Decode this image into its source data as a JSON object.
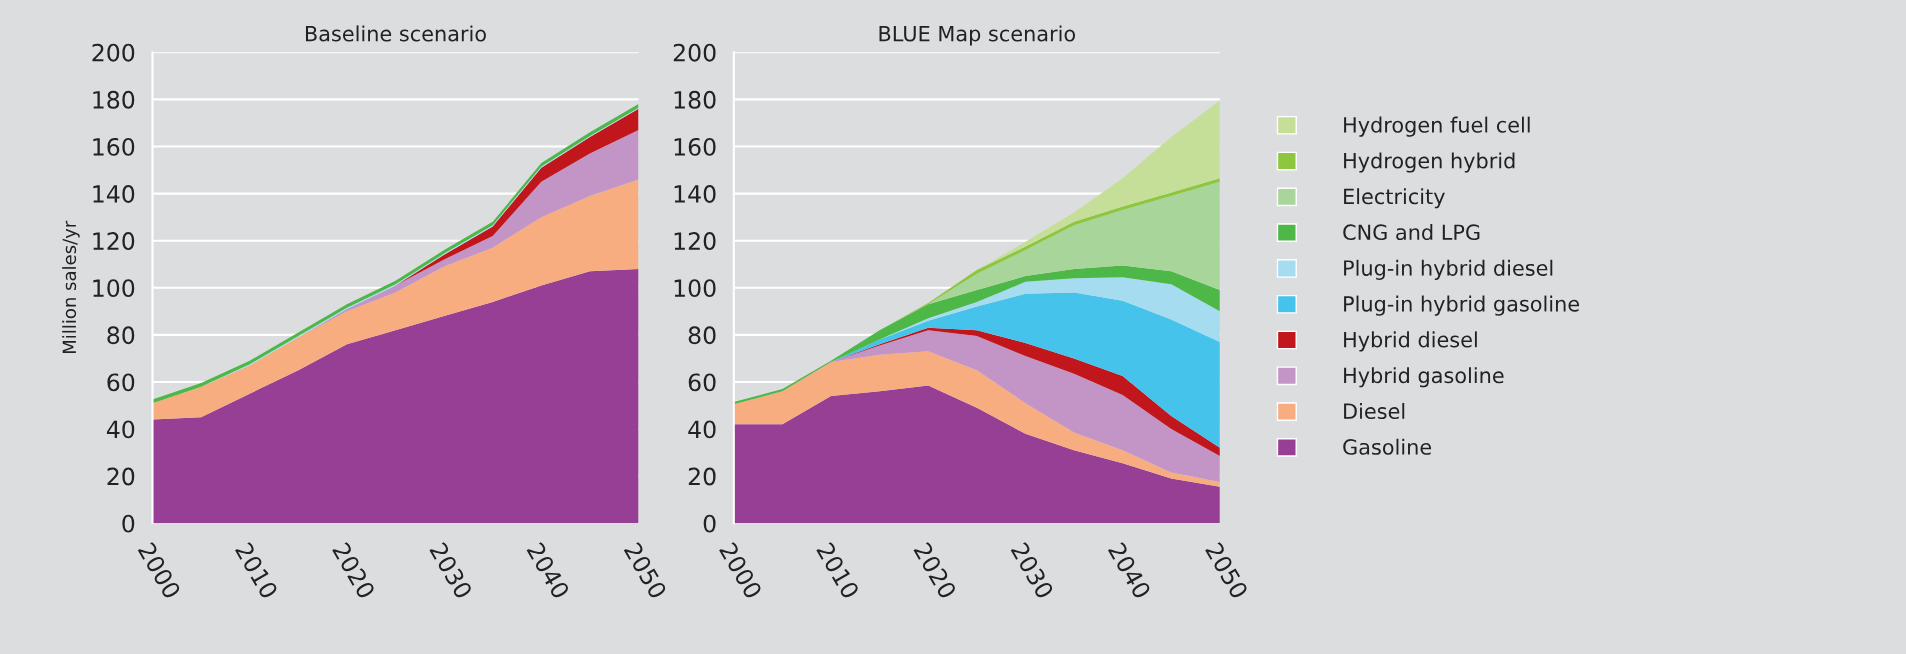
{
  "chart_data": [
    {
      "type": "area",
      "stacked": true,
      "title": "Baseline scenario",
      "ylabel": "Million sales/yr",
      "x": [
        2000,
        2005,
        2010,
        2015,
        2020,
        2025,
        2030,
        2035,
        2040,
        2045,
        2050
      ],
      "xlim": [
        2000,
        2050
      ],
      "xticks": [
        2000,
        2010,
        2020,
        2030,
        2040,
        2050
      ],
      "ylim": [
        0,
        200
      ],
      "yticks": [
        0,
        20,
        40,
        60,
        80,
        100,
        120,
        140,
        160,
        180,
        200
      ],
      "grid": "y",
      "legend": false,
      "series": [
        {
          "color": "#973f94",
          "values": [
            44,
            45,
            55,
            65,
            76,
            82,
            88,
            94,
            101,
            107,
            108
          ]
        },
        {
          "color": "#f8ad80",
          "values": [
            7,
            13,
            12,
            14,
            14,
            16,
            21,
            23,
            29,
            32,
            38
          ]
        },
        {
          "color": "#c394c6",
          "values": [
            0,
            0,
            0,
            0,
            1,
            3,
            3,
            5,
            15,
            18,
            21
          ]
        },
        {
          "color": "#c1161c",
          "values": [
            0,
            0,
            0,
            0,
            0,
            0,
            2,
            4,
            6,
            7,
            9
          ]
        },
        {
          "color": "#a6dcf0",
          "values": [
            0,
            0,
            0.5,
            0.5,
            0.5,
            0.5,
            0.5,
            0.5,
            0.5,
            0.5,
            0.5
          ]
        },
        {
          "color": "#4db848",
          "values": [
            1.5,
            1.5,
            1.5,
            1.5,
            1.5,
            1.5,
            1.5,
            1.5,
            1.5,
            1.5,
            1.5
          ]
        }
      ]
    },
    {
      "type": "area",
      "stacked": true,
      "title": "BLUE Map scenario",
      "x": [
        2000,
        2005,
        2010,
        2015,
        2020,
        2025,
        2030,
        2035,
        2040,
        2045,
        2050
      ],
      "xlim": [
        2000,
        2050
      ],
      "xticks": [
        2000,
        2010,
        2020,
        2030,
        2040,
        2050
      ],
      "ylim": [
        0,
        200
      ],
      "yticks": [
        0,
        20,
        40,
        60,
        80,
        100,
        120,
        140,
        160,
        180,
        200
      ],
      "grid": "y",
      "legend": "right",
      "series": [
        {
          "name": "Gasoline",
          "color": "#973f94",
          "values": [
            42,
            42,
            54,
            56,
            58.5,
            49,
            38,
            31,
            25.5,
            19,
            15.5
          ]
        },
        {
          "name": "Diesel",
          "color": "#f8ad80",
          "values": [
            8.5,
            14,
            14.5,
            15.5,
            14.5,
            16,
            13,
            7.5,
            5.5,
            2.5,
            2
          ]
        },
        {
          "name": "Hybrid gasoline",
          "color": "#c394c6",
          "values": [
            0,
            0,
            0,
            4,
            9,
            14.5,
            20,
            25,
            23.5,
            18.5,
            11
          ]
        },
        {
          "name": "Hybrid diesel",
          "color": "#c1161c",
          "values": [
            0,
            0,
            0,
            0.5,
            1,
            2.5,
            5.5,
            6.5,
            8,
            5.5,
            3.5
          ]
        },
        {
          "name": "Plug-in hybrid gasoline",
          "color": "#45c3ea",
          "values": [
            0,
            0,
            0,
            2,
            3,
            10,
            21,
            28,
            32,
            41,
            45
          ]
        },
        {
          "name": "Plug-in hybrid diesel",
          "color": "#a6dcf0",
          "values": [
            0,
            0,
            0,
            0,
            1,
            2,
            5,
            6,
            10,
            15,
            13
          ]
        },
        {
          "name": "CNG and LPG",
          "color": "#4db848",
          "values": [
            1,
            1,
            0.5,
            4,
            6,
            5,
            2.5,
            4,
            5,
            5.5,
            9
          ]
        },
        {
          "name": "Electricity",
          "color": "#a8d59a",
          "values": [
            0,
            0,
            0,
            0,
            0,
            7,
            11,
            18.5,
            23.5,
            32,
            46
          ]
        },
        {
          "name": "Hydrogen hybrid",
          "color": "#8dc63f",
          "values": [
            0,
            0,
            0,
            0,
            0.5,
            1.5,
            1.5,
            1.5,
            1.5,
            1.5,
            1.5
          ]
        },
        {
          "name": "Hydrogen fuel cell",
          "color": "#c5df99",
          "values": [
            0,
            0,
            0,
            0,
            0,
            0,
            2,
            4,
            12,
            23.5,
            33
          ]
        }
      ]
    }
  ]
}
